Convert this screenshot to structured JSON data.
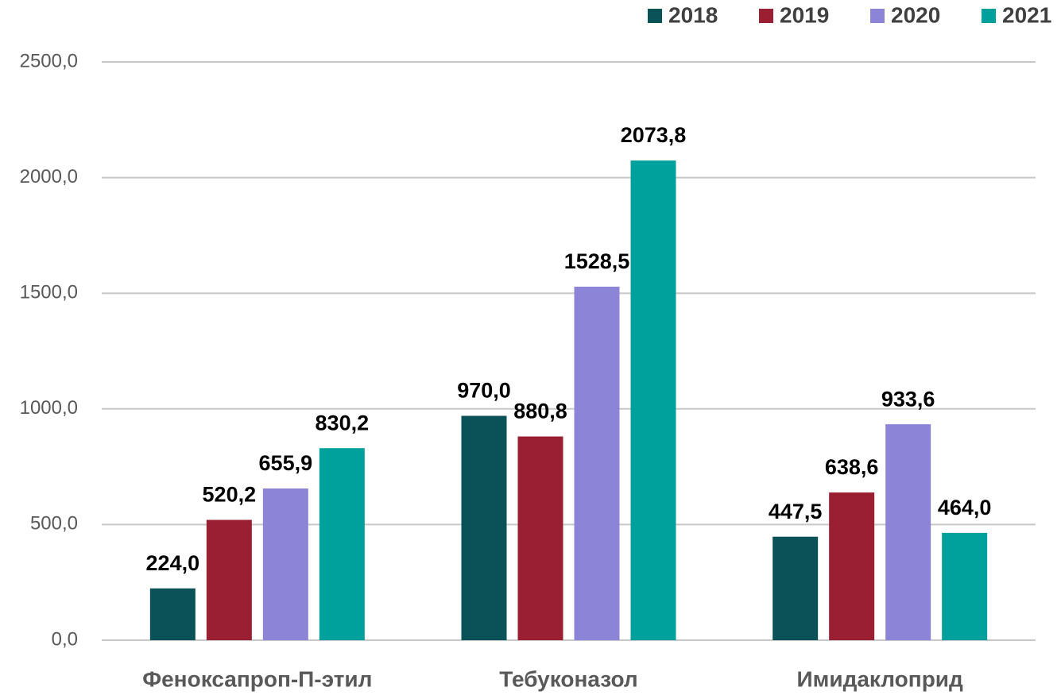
{
  "chart_data": {
    "type": "bar",
    "categories": [
      "Феноксапроп-П-этил",
      "Тебуконазол",
      "Имидаклоприд"
    ],
    "series": [
      {
        "name": "2018",
        "color": "#0b5258",
        "values": [
          224.0,
          970.0,
          447.5
        ],
        "value_labels": [
          "224,0",
          "970,0",
          "447,5"
        ]
      },
      {
        "name": "2019",
        "color": "#9b1f32",
        "values": [
          520.2,
          880.8,
          638.6
        ],
        "value_labels": [
          "520,2",
          "880,8",
          "638,6"
        ]
      },
      {
        "name": "2020",
        "color": "#8b84d7",
        "values": [
          655.9,
          1528.5,
          933.6
        ],
        "value_labels": [
          "655,9",
          "1528,5",
          "933,6"
        ]
      },
      {
        "name": "2021",
        "color": "#00a19d",
        "values": [
          830.2,
          2073.8,
          464.0
        ],
        "value_labels": [
          "830,2",
          "2073,8",
          "464,0"
        ]
      }
    ],
    "ylim": [
      0,
      2500
    ],
    "yticks": [
      {
        "value": 0,
        "label": "0,0"
      },
      {
        "value": 500,
        "label": "500,0"
      },
      {
        "value": 1000,
        "label": "1000,0"
      },
      {
        "value": 1500,
        "label": "1500,0"
      },
      {
        "value": 2000,
        "label": "2000,0"
      },
      {
        "value": 2500,
        "label": "2500,0"
      }
    ],
    "grid": true,
    "legend": "top-right"
  }
}
